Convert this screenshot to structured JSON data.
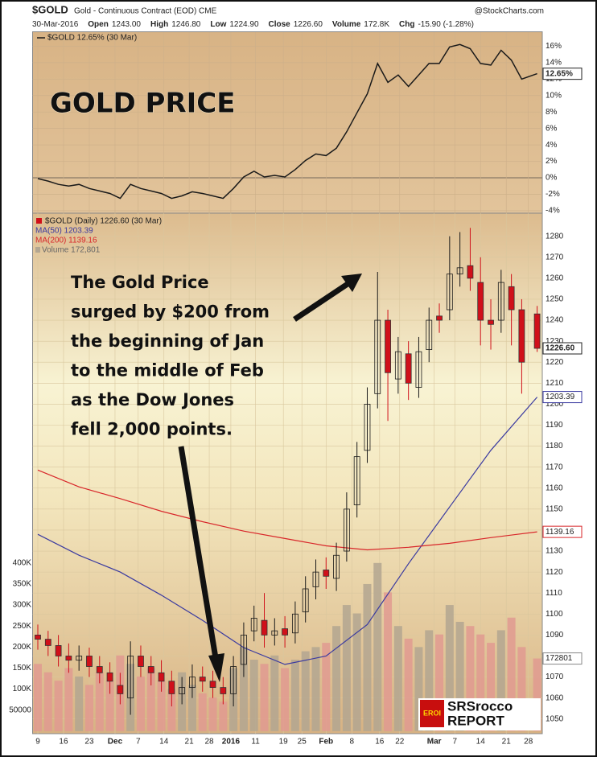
{
  "header": {
    "symbol": "$GOLD",
    "description": "Gold - Continuous Contract (EOD) CME",
    "source": "@StockCharts.com",
    "quote": [
      "30-Mar-2016",
      "Open",
      "1243.00",
      "High",
      "1246.80",
      "Low",
      "1224.90",
      "Close",
      "1226.60",
      "Volume",
      "172.8K",
      "Chg",
      "-15.90 (-1.28%)"
    ]
  },
  "annotations": {
    "title": "GOLD PRICE",
    "text": [
      "The Gold Price",
      "surged by $200 from",
      "the beginning of Jan",
      "to the middle of Feb",
      "as the Dow Jones",
      "fell 2,000 points."
    ]
  },
  "logo": {
    "badge": "EROI",
    "line1": "SRSrocco",
    "line2": "REPORT"
  },
  "chart_data": [
    {
      "type": "line",
      "x": [
        0,
        2,
        4,
        6,
        8,
        10,
        12,
        14,
        16,
        18,
        20,
        22,
        24,
        26,
        28,
        30,
        32,
        34,
        36,
        38,
        40,
        42,
        44,
        46,
        48,
        50,
        52,
        54,
        56,
        58,
        60,
        62,
        64,
        66,
        68,
        70,
        72,
        74,
        76,
        78,
        80,
        82,
        84,
        86,
        88,
        90,
        92,
        94,
        97
      ],
      "series": [
        {
          "name": "$GOLD 12.65% (30 Mar)",
          "color": "#1a1a1a",
          "values": [
            -0.1,
            -0.4,
            -0.8,
            -1.0,
            -0.8,
            -1.3,
            -1.6,
            -1.9,
            -2.5,
            -0.8,
            -1.3,
            -1.6,
            -1.9,
            -2.5,
            -2.2,
            -1.7,
            -1.9,
            -2.2,
            -2.5,
            -1.3,
            0.1,
            0.8,
            0.1,
            0.3,
            0.1,
            1.0,
            2.1,
            2.9,
            2.7,
            3.6,
            5.6,
            7.9,
            10.2,
            13.9,
            11.6,
            12.5,
            11.1,
            12.5,
            13.9,
            13.9,
            15.9,
            16.2,
            15.7,
            13.9,
            13.7,
            15.5,
            14.3,
            12.0,
            12.65
          ],
          "last_value_label": "12.65%"
        }
      ],
      "xlim": [
        -1,
        98
      ],
      "ylim": [
        -4.3,
        17.7
      ],
      "yticks": [
        {
          "value": 16,
          "label": "16%"
        },
        {
          "value": 14,
          "label": "14%"
        },
        {
          "value": 12,
          "label": "12%"
        },
        {
          "value": 10,
          "label": "10%"
        },
        {
          "value": 8,
          "label": "8%"
        },
        {
          "value": 6,
          "label": "6%"
        },
        {
          "value": 4,
          "label": "4%"
        },
        {
          "value": 2,
          "label": "2%"
        },
        {
          "value": 0,
          "label": "0%"
        },
        {
          "value": -2,
          "label": "-2%"
        },
        {
          "value": -4,
          "label": "-4%"
        }
      ],
      "grid": true
    },
    {
      "type": "candlestick",
      "name": "$GOLD (Daily) 1226.60 (30 Mar)",
      "x": [
        0,
        2,
        4,
        6,
        8,
        10,
        12,
        14,
        16,
        18,
        20,
        22,
        24,
        26,
        28,
        30,
        32,
        34,
        36,
        38,
        40,
        42,
        44,
        46,
        48,
        50,
        52,
        54,
        56,
        58,
        60,
        62,
        64,
        66,
        68,
        70,
        72,
        74,
        76,
        78,
        80,
        82,
        84,
        86,
        88,
        90,
        92,
        94,
        97
      ],
      "open": [
        1090,
        1088,
        1085,
        1080,
        1078,
        1080,
        1075,
        1072,
        1066,
        1060,
        1080,
        1075,
        1072,
        1068,
        1062,
        1065,
        1070,
        1068,
        1065,
        1062,
        1076,
        1092,
        1097,
        1090,
        1093,
        1091,
        1101,
        1113,
        1121,
        1117,
        1130,
        1152,
        1178,
        1205,
        1240,
        1212,
        1224,
        1208,
        1226,
        1242,
        1245,
        1262,
        1266,
        1258,
        1240,
        1240,
        1256,
        1245,
        1243
      ],
      "high": [
        1095,
        1092,
        1090,
        1086,
        1085,
        1084,
        1080,
        1077,
        1072,
        1087,
        1085,
        1080,
        1078,
        1073,
        1070,
        1076,
        1075,
        1073,
        1070,
        1080,
        1096,
        1104,
        1110,
        1098,
        1099,
        1106,
        1118,
        1126,
        1127,
        1134,
        1158,
        1182,
        1208,
        1263,
        1245,
        1232,
        1230,
        1232,
        1246,
        1248,
        1280,
        1282,
        1284,
        1270,
        1250,
        1264,
        1262,
        1250,
        1246.8
      ],
      "low": [
        1083,
        1080,
        1075,
        1072,
        1073,
        1070,
        1067,
        1062,
        1057,
        1052,
        1070,
        1066,
        1063,
        1056,
        1057,
        1060,
        1063,
        1060,
        1057,
        1056,
        1070,
        1087,
        1084,
        1085,
        1084,
        1086,
        1096,
        1107,
        1112,
        1111,
        1125,
        1146,
        1172,
        1198,
        1192,
        1205,
        1202,
        1203,
        1220,
        1234,
        1240,
        1256,
        1254,
        1228,
        1226,
        1234,
        1228,
        1205,
        1224.9
      ],
      "close": [
        1088,
        1085,
        1080,
        1078,
        1080,
        1075,
        1072,
        1068,
        1062,
        1080,
        1075,
        1072,
        1068,
        1062,
        1065,
        1070,
        1068,
        1065,
        1062,
        1075,
        1090,
        1098,
        1090,
        1092,
        1090,
        1100,
        1112,
        1120,
        1118,
        1128,
        1150,
        1175,
        1200,
        1240,
        1215,
        1225,
        1210,
        1225,
        1240,
        1240,
        1262,
        1265,
        1260,
        1240,
        1238,
        1258,
        1245,
        1220,
        1226.6
      ],
      "close_value_label": "1226.60",
      "up_color": "#1a1a1a",
      "down_color": "#d0101a",
      "moving_averages": [
        {
          "name": "MA(50) 1203.39",
          "color": "#3a3aa0",
          "x": [
            0,
            8,
            16,
            24,
            32,
            40,
            48,
            56,
            64,
            72,
            80,
            88,
            97
          ],
          "values": [
            1138,
            1128,
            1120,
            1109,
            1097,
            1084,
            1076,
            1080,
            1095,
            1124,
            1151,
            1178,
            1203.39
          ]
        },
        {
          "name": "MA(200) 1139.16",
          "color": "#d8262a",
          "x": [
            0,
            8,
            16,
            24,
            32,
            40,
            48,
            56,
            64,
            72,
            80,
            88,
            97
          ],
          "values": [
            1168.6,
            1160.6,
            1155,
            1149,
            1144,
            1139.5,
            1136,
            1132.5,
            1130.6,
            1131.8,
            1133.7,
            1136.4,
            1139.16
          ]
        }
      ],
      "volume": {
        "name": "Volume 172,801",
        "up_color": "#b3a691",
        "down_color": "#e09a90",
        "values": [
          160000,
          140000,
          120000,
          150000,
          130000,
          110000,
          140000,
          120000,
          180000,
          160000,
          130000,
          150000,
          120000,
          100000,
          140000,
          110000,
          90000,
          80000,
          70000,
          150000,
          200000,
          170000,
          160000,
          180000,
          150000,
          170000,
          190000,
          200000,
          210000,
          250000,
          300000,
          280000,
          350000,
          400000,
          330000,
          250000,
          220000,
          200000,
          240000,
          230000,
          300000,
          260000,
          250000,
          230000,
          210000,
          240000,
          270000,
          200000,
          172801
        ],
        "ylim": [
          -6000,
          1232000
        ],
        "ticks": [
          {
            "value": 400000,
            "label": "400K"
          },
          {
            "value": 350000,
            "label": "350K"
          },
          {
            "value": 300000,
            "label": "300K"
          },
          {
            "value": 250000,
            "label": "250K"
          },
          {
            "value": 200000,
            "label": "200K"
          },
          {
            "value": 150000,
            "label": "150K"
          },
          {
            "value": 100000,
            "label": "100K"
          },
          50000
        ]
      },
      "xlim": [
        -1,
        98
      ],
      "ylim": [
        1043,
        1291
      ],
      "yticks": [
        1280,
        1270,
        1260,
        1250,
        1240,
        1230,
        1220,
        1210,
        1200,
        1190,
        1180,
        1170,
        1160,
        1150,
        1140,
        1130,
        1120,
        1110,
        1100,
        1090,
        1080,
        1070,
        1060,
        1050
      ],
      "xticks": [
        {
          "value": 0,
          "label": "9"
        },
        {
          "value": 5,
          "label": "16"
        },
        {
          "value": 10,
          "label": "23"
        },
        {
          "value": 15,
          "label": "Dec"
        },
        {
          "value": 19.5,
          "label": "7"
        },
        {
          "value": 24.5,
          "label": "14"
        },
        {
          "value": 29.4,
          "label": "21"
        },
        {
          "value": 33.3,
          "label": "28"
        },
        {
          "value": 37.5,
          "label": "2016"
        },
        {
          "value": 42.3,
          "label": "11"
        },
        {
          "value": 47.7,
          "label": "19"
        },
        {
          "value": 51.3,
          "label": "25"
        },
        {
          "value": 56,
          "label": "Feb"
        },
        {
          "value": 61,
          "label": "8"
        },
        {
          "value": 66.4,
          "label": "16"
        },
        {
          "value": 70.3,
          "label": "22"
        },
        {
          "value": 77,
          "label": "Mar"
        },
        {
          "value": 81,
          "label": "7"
        },
        {
          "value": 86,
          "label": "14"
        },
        {
          "value": 91,
          "label": "21"
        },
        {
          "value": 95.3,
          "label": "28"
        }
      ],
      "grid": true
    }
  ]
}
